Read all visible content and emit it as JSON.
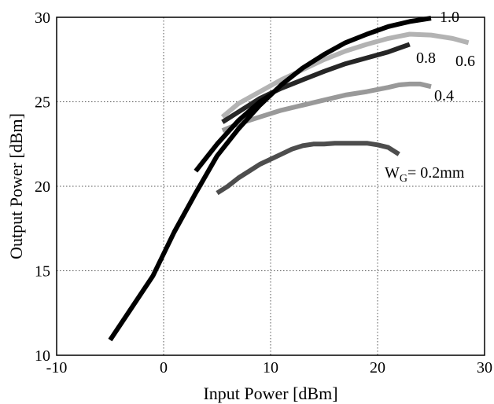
{
  "chart_data": {
    "type": "line",
    "xlabel": "Input Power [dBm]",
    "ylabel": "Output Power [dBm]",
    "xlim": [
      -10,
      30
    ],
    "ylim": [
      10,
      30
    ],
    "xticks": [
      -10,
      0,
      10,
      20,
      30
    ],
    "yticks": [
      10,
      15,
      20,
      25,
      30
    ],
    "grid": true,
    "series": [
      {
        "name": "W",
        "name_sub": "G",
        "name_rest": "= 0.2mm",
        "color": "#4d4d4d",
        "x": [
          5,
          6,
          7,
          8,
          9,
          10,
          11,
          12,
          13,
          14,
          15,
          16,
          17,
          18,
          19,
          20,
          21,
          22
        ],
        "y": [
          19.6,
          20.0,
          20.5,
          20.9,
          21.3,
          21.6,
          21.9,
          22.2,
          22.4,
          22.5,
          22.5,
          22.55,
          22.55,
          22.55,
          22.55,
          22.45,
          22.3,
          21.9
        ]
      },
      {
        "name": "0.4",
        "color": "#999999",
        "x": [
          5.5,
          7,
          9,
          11,
          13,
          15,
          17,
          19,
          21,
          22,
          23,
          24,
          25
        ],
        "y": [
          23.3,
          23.7,
          24.1,
          24.5,
          24.8,
          25.1,
          25.4,
          25.6,
          25.85,
          26.0,
          26.05,
          26.05,
          25.9
        ]
      },
      {
        "name": "0.6",
        "color": "#b3b3b3",
        "x": [
          5.5,
          7,
          9,
          11,
          13,
          15,
          17,
          19,
          21,
          23,
          25,
          27,
          28.5
        ],
        "y": [
          24.1,
          24.9,
          25.6,
          26.3,
          26.9,
          27.5,
          28.0,
          28.4,
          28.75,
          29.0,
          28.95,
          28.75,
          28.5
        ]
      },
      {
        "name": "0.8",
        "color": "#262626",
        "x": [
          5.5,
          7,
          9,
          11,
          13,
          15,
          17,
          19,
          21,
          23
        ],
        "y": [
          23.8,
          24.4,
          25.2,
          25.8,
          26.3,
          26.8,
          27.25,
          27.6,
          27.95,
          28.4
        ]
      },
      {
        "name": "1.0",
        "color": "#000000",
        "x": [
          -5,
          -3,
          -1,
          1,
          3,
          5,
          7,
          9,
          11,
          13,
          15,
          17,
          19,
          21,
          23,
          25
        ],
        "y": [
          10.9,
          12.8,
          14.7,
          17.3,
          19.6,
          21.8,
          23.4,
          24.8,
          26.0,
          27.0,
          27.8,
          28.5,
          29.0,
          29.45,
          29.75,
          29.95
        ]
      },
      {
        "name": "",
        "color": "#000000",
        "x": [
          3,
          5,
          7,
          9,
          10
        ],
        "y": [
          20.9,
          22.5,
          23.9,
          25.0,
          25.4
        ]
      }
    ]
  }
}
